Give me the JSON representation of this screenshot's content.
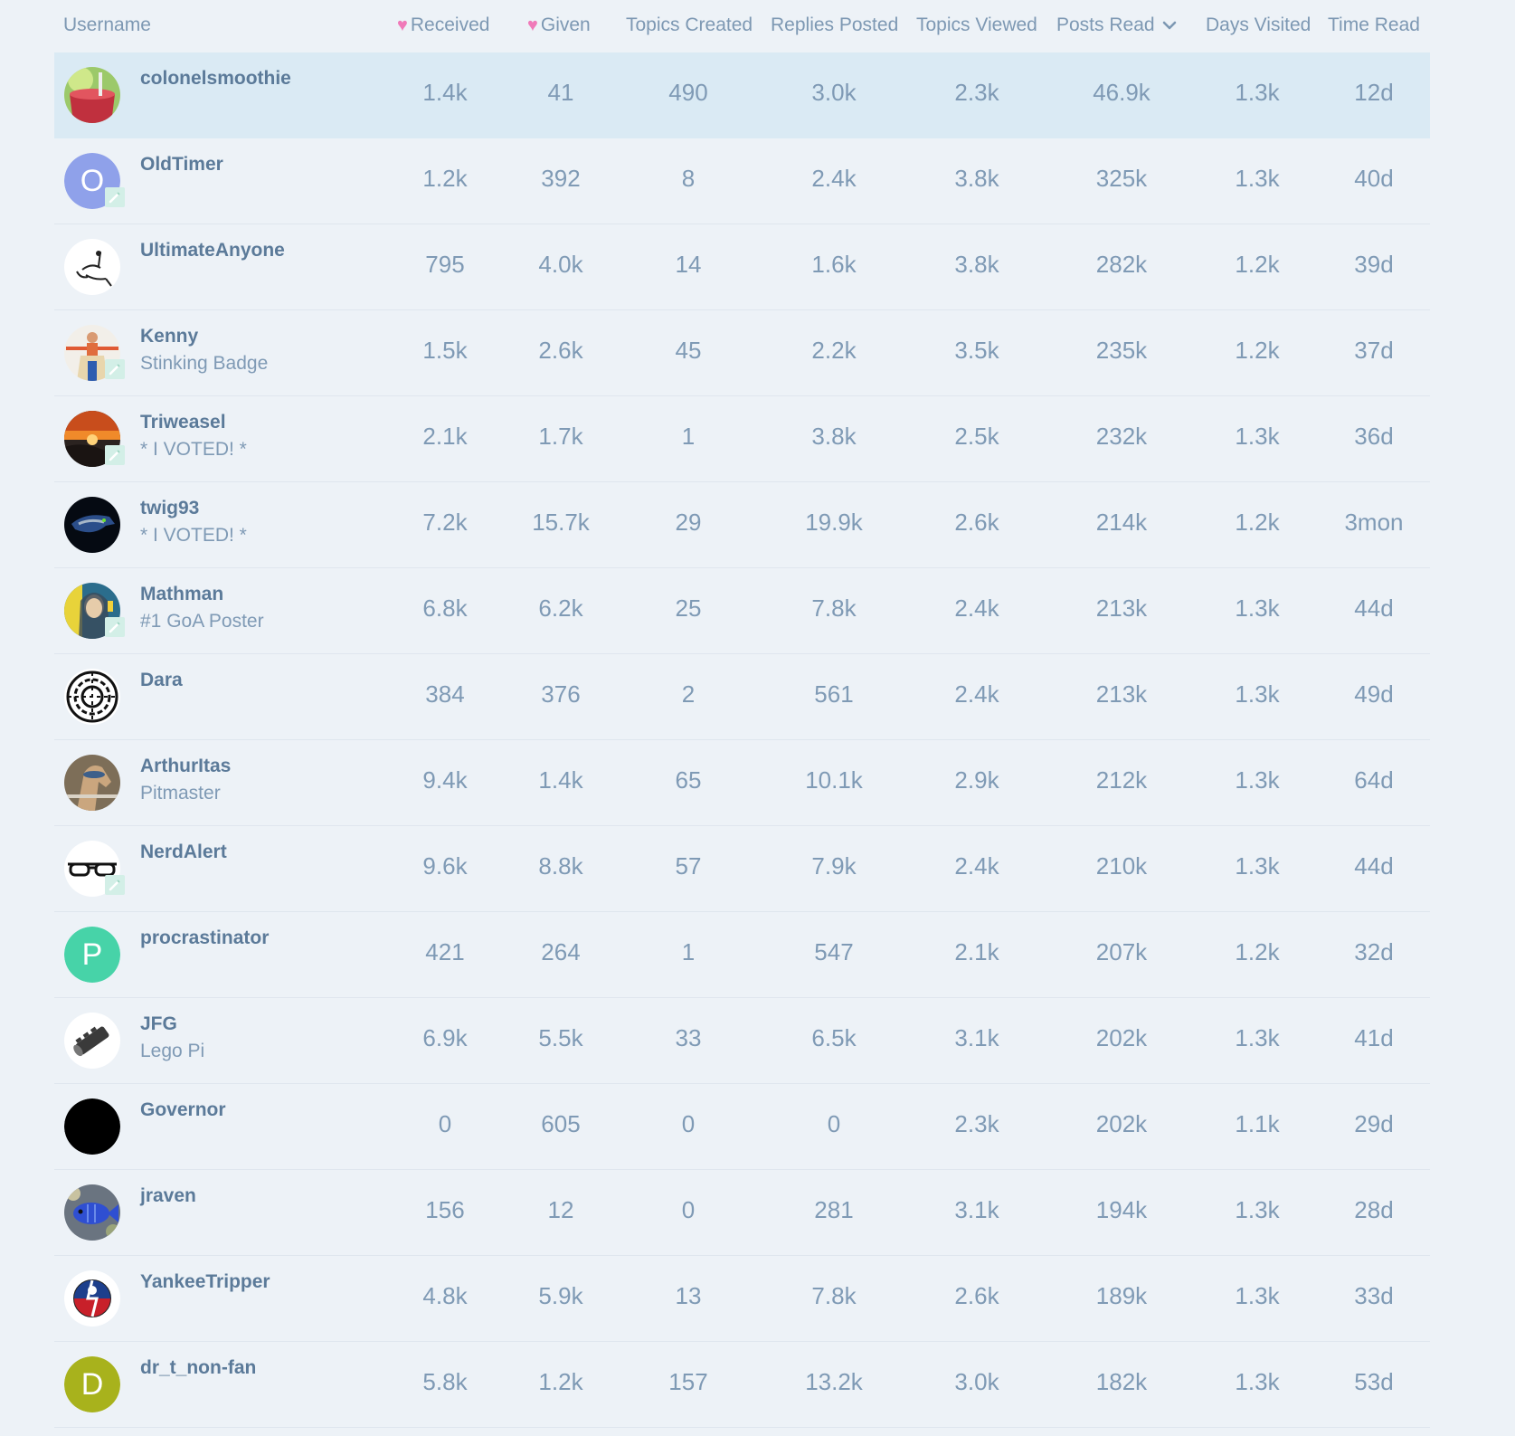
{
  "headers": {
    "username": "Username",
    "received": "Received",
    "given": "Given",
    "topics_created": "Topics Created",
    "replies_posted": "Replies Posted",
    "topics_viewed": "Topics Viewed",
    "posts_read": "Posts Read",
    "days_visited": "Days Visited",
    "time_read": "Time Read",
    "sort_icon": "chevron-down-icon",
    "heart_icon": "heart-icon"
  },
  "colors": {
    "background": "#edf2f7",
    "highlight_row": "#daeaf4",
    "heart": "#f07ab9",
    "username_text": "#5b7a99",
    "cell_text": "#7f9ab5"
  },
  "rows": [
    {
      "username": "colonelsmoothie",
      "title": "",
      "avatar": "smoothie-avatar",
      "highlighted": true,
      "received": "1.4k",
      "given": "41",
      "topics_created": "490",
      "replies_posted": "3.0k",
      "topics_viewed": "2.3k",
      "posts_read": "46.9k",
      "days_visited": "1.3k",
      "time_read": "12d"
    },
    {
      "username": "OldTimer",
      "title": "",
      "avatar": "letter-O",
      "badge": true,
      "received": "1.2k",
      "given": "392",
      "topics_created": "8",
      "replies_posted": "2.4k",
      "topics_viewed": "3.8k",
      "posts_read": "325k",
      "days_visited": "1.3k",
      "time_read": "40d"
    },
    {
      "username": "UltimateAnyone",
      "title": "",
      "avatar": "sketch-avatar",
      "received": "795",
      "given": "4.0k",
      "topics_created": "14",
      "replies_posted": "1.6k",
      "topics_viewed": "3.8k",
      "posts_read": "282k",
      "days_visited": "1.2k",
      "time_read": "39d"
    },
    {
      "username": "Kenny",
      "title": "Stinking Badge",
      "avatar": "person-avatar",
      "badge": true,
      "received": "1.5k",
      "given": "2.6k",
      "topics_created": "45",
      "replies_posted": "2.2k",
      "topics_viewed": "3.5k",
      "posts_read": "235k",
      "days_visited": "1.2k",
      "time_read": "37d"
    },
    {
      "username": "Triweasel",
      "title": "* I VOTED! *",
      "avatar": "sunset-avatar",
      "badge": true,
      "received": "2.1k",
      "given": "1.7k",
      "topics_created": "1",
      "replies_posted": "3.8k",
      "topics_viewed": "2.5k",
      "posts_read": "232k",
      "days_visited": "1.3k",
      "time_read": "36d"
    },
    {
      "username": "twig93",
      "title": "* I VOTED! *",
      "avatar": "seahawk-avatar",
      "received": "7.2k",
      "given": "15.7k",
      "topics_created": "29",
      "replies_posted": "19.9k",
      "topics_viewed": "2.6k",
      "posts_read": "214k",
      "days_visited": "1.2k",
      "time_read": "3mon"
    },
    {
      "username": "Mathman",
      "title": "#1 GoA Poster",
      "avatar": "icon-portrait-avatar",
      "badge": true,
      "received": "6.8k",
      "given": "6.2k",
      "topics_created": "25",
      "replies_posted": "7.8k",
      "topics_viewed": "2.4k",
      "posts_read": "213k",
      "days_visited": "1.3k",
      "time_read": "44d"
    },
    {
      "username": "Dara",
      "title": "",
      "avatar": "celtic-knot-avatar",
      "received": "384",
      "given": "376",
      "topics_created": "2",
      "replies_posted": "561",
      "topics_viewed": "2.4k",
      "posts_read": "213k",
      "days_visited": "1.3k",
      "time_read": "49d"
    },
    {
      "username": "ArthurItas",
      "title": "Pitmaster",
      "avatar": "horse-avatar",
      "received": "9.4k",
      "given": "1.4k",
      "topics_created": "65",
      "replies_posted": "10.1k",
      "topics_viewed": "2.9k",
      "posts_read": "212k",
      "days_visited": "1.3k",
      "time_read": "64d"
    },
    {
      "username": "NerdAlert",
      "title": "",
      "avatar": "glasses-avatar",
      "badge": true,
      "received": "9.6k",
      "given": "8.8k",
      "topics_created": "57",
      "replies_posted": "7.9k",
      "topics_viewed": "2.4k",
      "posts_read": "210k",
      "days_visited": "1.3k",
      "time_read": "44d"
    },
    {
      "username": "procrastinator",
      "title": "",
      "avatar": "letter-P",
      "received": "421",
      "given": "264",
      "topics_created": "1",
      "replies_posted": "547",
      "topics_viewed": "2.1k",
      "posts_read": "207k",
      "days_visited": "1.2k",
      "time_read": "32d"
    },
    {
      "username": "JFG",
      "title": "Lego Pi",
      "avatar": "lego-avatar",
      "received": "6.9k",
      "given": "5.5k",
      "topics_created": "33",
      "replies_posted": "6.5k",
      "topics_viewed": "3.1k",
      "posts_read": "202k",
      "days_visited": "1.3k",
      "time_read": "41d"
    },
    {
      "username": "Governor",
      "title": "",
      "avatar": "black-circle-avatar",
      "received": "0",
      "given": "605",
      "topics_created": "0",
      "replies_posted": "0",
      "topics_viewed": "2.3k",
      "posts_read": "202k",
      "days_visited": "1.1k",
      "time_read": "29d"
    },
    {
      "username": "jraven",
      "title": "",
      "avatar": "fish-avatar",
      "received": "156",
      "given": "12",
      "topics_created": "0",
      "replies_posted": "281",
      "topics_viewed": "3.1k",
      "posts_read": "194k",
      "days_visited": "1.3k",
      "time_read": "28d"
    },
    {
      "username": "YankeeTripper",
      "title": "",
      "avatar": "steal-your-face-avatar",
      "received": "4.8k",
      "given": "5.9k",
      "topics_created": "13",
      "replies_posted": "7.8k",
      "topics_viewed": "2.6k",
      "posts_read": "189k",
      "days_visited": "1.3k",
      "time_read": "33d"
    },
    {
      "username": "dr_t_non-fan",
      "title": "",
      "avatar": "letter-D",
      "received": "5.8k",
      "given": "1.2k",
      "topics_created": "157",
      "replies_posted": "13.2k",
      "topics_viewed": "3.0k",
      "posts_read": "182k",
      "days_visited": "1.3k",
      "time_read": "53d"
    }
  ]
}
